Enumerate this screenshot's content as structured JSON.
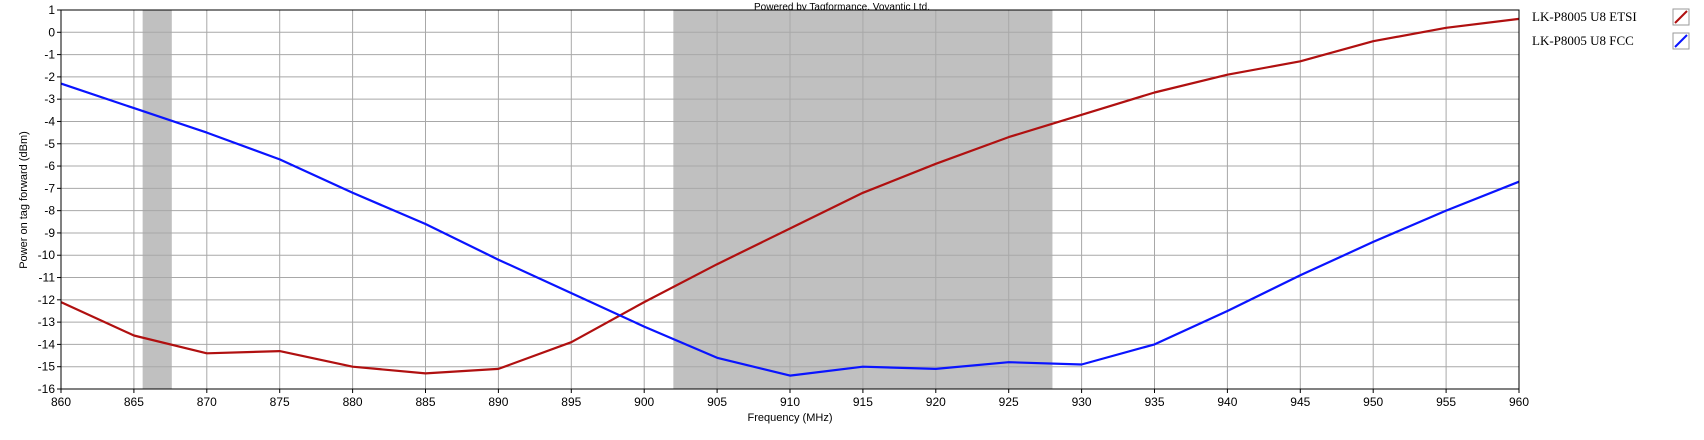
{
  "credit": "Powered by Tagformance, Voyantic Ltd.",
  "chart_data": {
    "type": "line",
    "xlabel": "Frequency (MHz)",
    "ylabel": "Power on tag forward (dBm)",
    "xlim": [
      860,
      960
    ],
    "ylim": [
      -16,
      1
    ],
    "x_ticks": [
      860,
      865,
      870,
      875,
      880,
      885,
      890,
      895,
      900,
      905,
      910,
      915,
      920,
      925,
      930,
      935,
      940,
      945,
      950,
      955,
      960
    ],
    "y_ticks": [
      1,
      0,
      -1,
      -2,
      -3,
      -4,
      -5,
      -6,
      -7,
      -8,
      -9,
      -10,
      -11,
      -12,
      -13,
      -14,
      -15,
      -16
    ],
    "grid": true,
    "legend_position": "right",
    "shaded_bands": [
      {
        "x_start": 865.6,
        "x_end": 867.6,
        "color": "#c0c0c0"
      },
      {
        "x_start": 902,
        "x_end": 928,
        "color": "#c0c0c0"
      }
    ],
    "series": [
      {
        "name": "LK-P8005 U8 ETSI",
        "color": "#b01010",
        "x": [
          860,
          865,
          870,
          875,
          880,
          885,
          890,
          895,
          900,
          905,
          910,
          915,
          920,
          925,
          930,
          935,
          940,
          945,
          950,
          955,
          960
        ],
        "y": [
          -12.1,
          -13.6,
          -14.4,
          -14.3,
          -15.0,
          -15.3,
          -15.1,
          -13.9,
          -12.1,
          -10.4,
          -8.8,
          -7.2,
          -5.9,
          -4.7,
          -3.7,
          -2.7,
          -1.9,
          -1.3,
          -0.4,
          0.2,
          0.6
        ]
      },
      {
        "name": "LK-P8005 U8 FCC",
        "color": "#0a14ff",
        "x": [
          860,
          865,
          870,
          875,
          880,
          885,
          890,
          895,
          900,
          905,
          910,
          915,
          920,
          925,
          930,
          935,
          940,
          945,
          950,
          955,
          960
        ],
        "y": [
          -2.3,
          -3.4,
          -4.5,
          -5.7,
          -7.2,
          -8.6,
          -10.2,
          -11.7,
          -13.2,
          -14.6,
          -15.4,
          -15.0,
          -15.1,
          -14.8,
          -14.9,
          -14.0,
          -12.5,
          -10.9,
          -9.4,
          -8.0,
          -6.7
        ]
      }
    ]
  }
}
